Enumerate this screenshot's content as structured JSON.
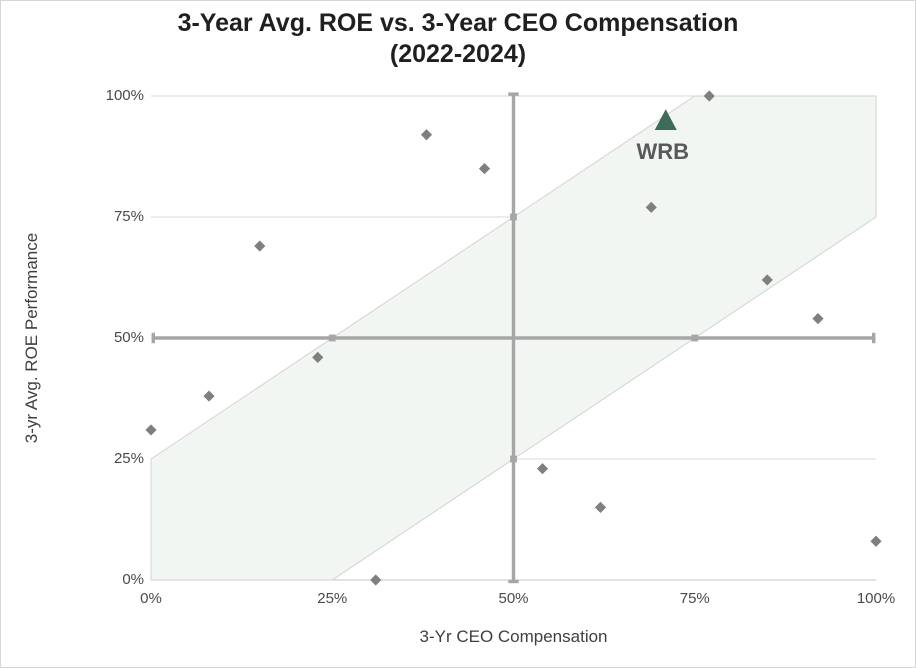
{
  "colors": {
    "gridline": "#D9D9D9",
    "axis_line": "#C6C6C6",
    "crosshair": "#A6A6A6",
    "diamond_marker": "#7F7F7F",
    "triangle_marker": "#3F6C58",
    "annotation_text": "#595959",
    "band_fill": "#F2F6F2",
    "band_stroke": "#D2D2D2"
  },
  "chart_data": {
    "type": "scatter",
    "title_line1": "3-Year Avg. ROE vs. 3-Year CEO Compensation",
    "title_line2": "(2022-2024)",
    "xlabel": "3-Yr CEO Compensation",
    "ylabel": "3-yr Avg. ROE Performance",
    "xlim": [
      0,
      100
    ],
    "ylim": [
      0,
      100
    ],
    "x_ticks": [
      "0%",
      "25%",
      "50%",
      "75%",
      "100%"
    ],
    "y_ticks": [
      "0%",
      "25%",
      "50%",
      "75%",
      "100%"
    ],
    "grid": "horizontal-only",
    "legend": "none",
    "reference_lines": {
      "x": 50,
      "y": 50,
      "tick_positions": [
        25,
        75
      ]
    },
    "band": {
      "shape": "diagonal-band",
      "offset": 25,
      "polygon": [
        [
          0,
          25
        ],
        [
          75,
          100
        ],
        [
          100,
          100
        ],
        [
          100,
          75
        ],
        [
          25,
          0
        ],
        [
          0,
          0
        ]
      ]
    },
    "series": [
      {
        "marker": "diamond",
        "points": [
          [
            0,
            31
          ],
          [
            8,
            38
          ],
          [
            15,
            69
          ],
          [
            23,
            46
          ],
          [
            31,
            0
          ],
          [
            38,
            92
          ],
          [
            46,
            85
          ],
          [
            54,
            23
          ],
          [
            62,
            15
          ],
          [
            69,
            77
          ],
          [
            77,
            100
          ],
          [
            85,
            62
          ],
          [
            92,
            54
          ],
          [
            100,
            8
          ]
        ]
      },
      {
        "marker": "triangle",
        "label": "WRB",
        "points": [
          [
            71,
            95
          ]
        ]
      }
    ]
  }
}
